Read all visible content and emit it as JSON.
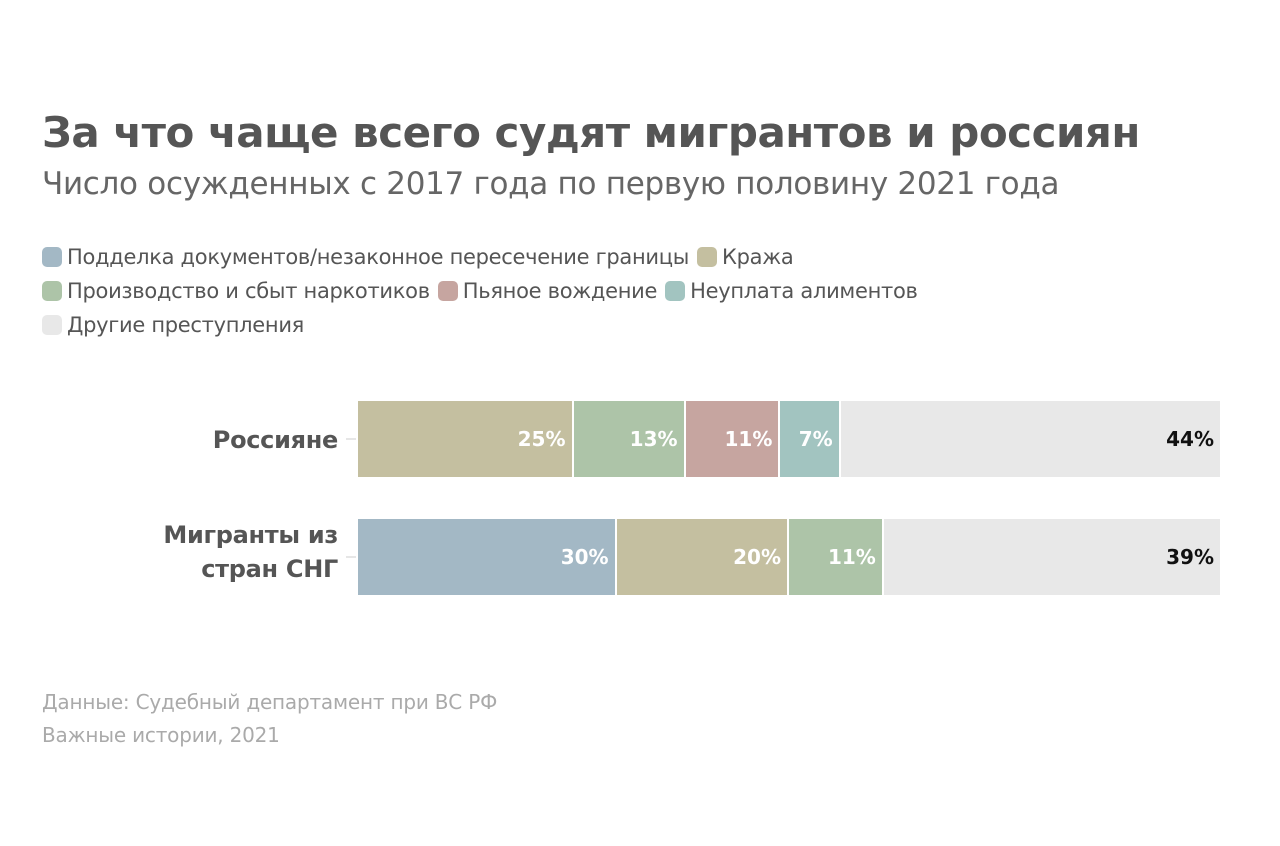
{
  "chart_data": {
    "type": "bar",
    "stacked": true,
    "orientation": "horizontal",
    "unit": "%",
    "title": "За что чаще всего судят мигрантов и россиян",
    "subtitle": "Число осужденных с 2017 года по первую половину 2021 года",
    "legend": [
      {
        "key": "forgery",
        "label": "Подделка документов/незаконное пересечение границы",
        "color": "#a3b8c5"
      },
      {
        "key": "theft",
        "label": "Кража",
        "color": "#c4bfa0"
      },
      {
        "key": "drugs",
        "label": "Производство и сбыт наркотиков",
        "color": "#adc4a8"
      },
      {
        "key": "drunk",
        "label": "Пьяное вождение",
        "color": "#c6a5a0"
      },
      {
        "key": "alimony",
        "label": "Неуплата алиментов",
        "color": "#a2c4c0"
      },
      {
        "key": "other",
        "label": "Другие преступления",
        "color": "#e8e8e8"
      }
    ],
    "categories": [
      "Россияне",
      "Мигранты из стран СНГ"
    ],
    "category_lines": [
      [
        "Россияне"
      ],
      [
        "Мигранты из",
        "стран СНГ"
      ]
    ],
    "series_values": [
      [
        {
          "key": "theft",
          "value": 25,
          "label": "25%"
        },
        {
          "key": "drugs",
          "value": 13,
          "label": "13%"
        },
        {
          "key": "drunk",
          "value": 11,
          "label": "11%"
        },
        {
          "key": "alimony",
          "value": 7,
          "label": "7%"
        },
        {
          "key": "other",
          "value": 44,
          "label": "44%"
        }
      ],
      [
        {
          "key": "forgery",
          "value": 30,
          "label": "30%"
        },
        {
          "key": "theft",
          "value": 20,
          "label": "20%"
        },
        {
          "key": "drugs",
          "value": 11,
          "label": "11%"
        },
        {
          "key": "other",
          "value": 39,
          "label": "39%"
        }
      ]
    ],
    "xlim": [
      0,
      100
    ]
  },
  "source": {
    "line1": "Данные: Судебный департамент при ВС РФ",
    "line2": "Важные истории, 2021"
  }
}
